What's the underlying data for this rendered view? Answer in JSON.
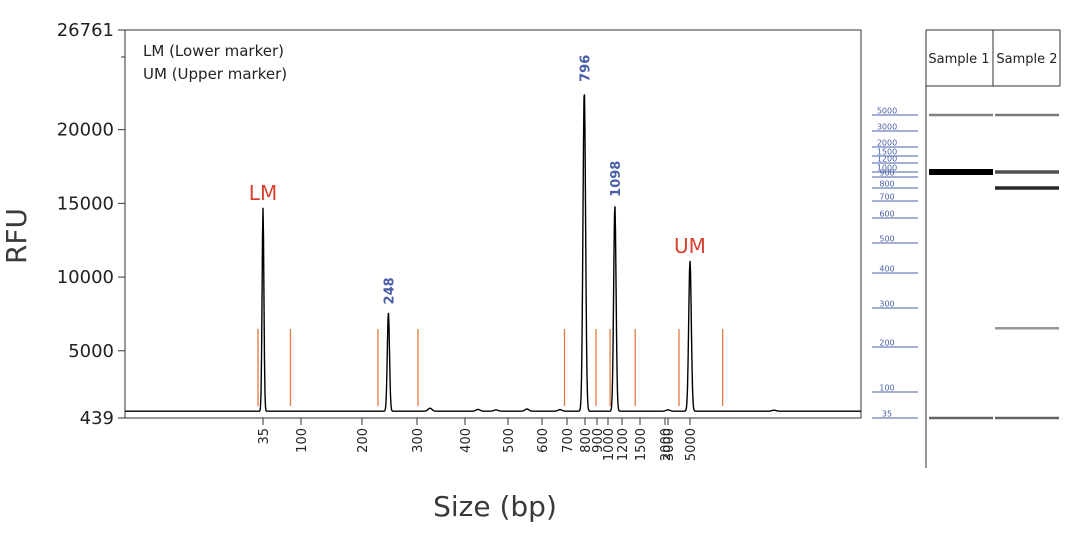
{
  "chart_data": {
    "type": "line",
    "ylabel": "RFU",
    "xlabel": "Size (bp)",
    "ylim": [
      439,
      26761
    ],
    "y_ticks": [
      "439",
      "5000",
      "10000",
      "15000",
      "20000",
      "26761"
    ],
    "x_scale": "nonlinear-size",
    "x_ticks": [
      "35",
      "100",
      "200",
      "300",
      "400",
      "500",
      "600",
      "700",
      "800",
      "900",
      "1000",
      "1200",
      "1500",
      "2000",
      "3000",
      "5000"
    ],
    "legend": [
      "LM (Lower marker)",
      "UM (Upper marker)"
    ],
    "legend_position": "top-left",
    "grid": false,
    "baseline_rfu": 900,
    "peaks": [
      {
        "size_bp": 35,
        "rfu": 14700,
        "label": "LM",
        "label_kind": "marker"
      },
      {
        "size_bp": 248,
        "rfu": 7600,
        "label": "248",
        "label_kind": "size"
      },
      {
        "size_bp": 796,
        "rfu": 22700,
        "label": "796",
        "label_kind": "size"
      },
      {
        "size_bp": 1098,
        "rfu": 14900,
        "label": "1098",
        "label_kind": "size"
      },
      {
        "size_bp": 5000,
        "rfu": 11100,
        "label": "UM",
        "label_kind": "marker"
      }
    ]
  },
  "gel": {
    "lanes": [
      "Sample 1",
      "Sample 2"
    ],
    "ladder_labels": [
      "5000",
      "3000",
      "2000",
      "1500",
      "1200",
      "1000",
      "900",
      "800",
      "700",
      "600",
      "500",
      "400",
      "300",
      "200",
      "100",
      "35"
    ],
    "sample1_bands": [
      {
        "size_bp": 5000,
        "intensity": 0.35
      },
      {
        "size_bp": 1000,
        "intensity": 1.0
      },
      {
        "size_bp": 35,
        "intensity": 0.5
      }
    ],
    "sample2_bands": [
      {
        "size_bp": 5000,
        "intensity": 0.4
      },
      {
        "size_bp": 1000,
        "intensity": 0.6
      },
      {
        "size_bp": 800,
        "intensity": 0.8
      },
      {
        "size_bp": 248,
        "intensity": 0.25
      },
      {
        "size_bp": 35,
        "intensity": 0.5
      }
    ]
  },
  "colors": {
    "trace": "#000000",
    "region_lines": "#e07a3c",
    "peak_label": "#4a5fa8",
    "marker_label": "#d9402f",
    "ladder": "#4a5fa8",
    "axis": "#333333"
  }
}
